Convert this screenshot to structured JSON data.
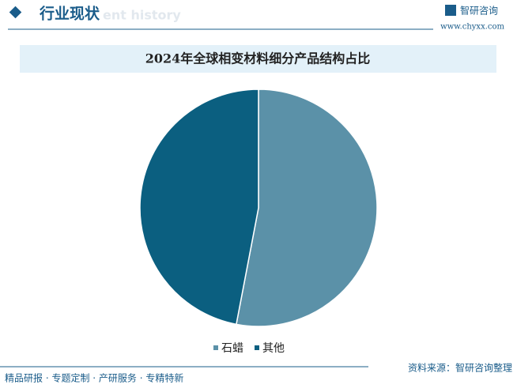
{
  "header": {
    "title": "行业现状",
    "subtitle": "ent history",
    "logo": "智研咨询",
    "url": "www.chyxx.com"
  },
  "chart_data": {
    "type": "pie",
    "title": "2024年全球相变材料细分产品结构占比",
    "categories": [
      "石蜡",
      "其他"
    ],
    "values": [
      53,
      47
    ],
    "colors": [
      "#5b91a8",
      "#0b5f80"
    ]
  },
  "footer": {
    "left": "精品研报 · 专题定制 · 产研服务 · 专精特新",
    "source": "资料来源：智研咨询整理"
  }
}
